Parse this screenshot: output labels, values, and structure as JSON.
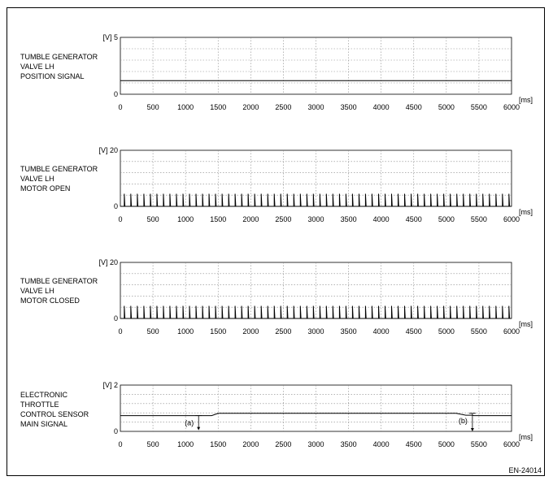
{
  "figure_id": "EN-24014",
  "chart_data": [
    {
      "type": "line",
      "signal_label": "TUMBLE GENERATOR\nVALVE LH\nPOSITION SIGNAL",
      "y_unit": "[V]",
      "x_unit": "[ms]",
      "ylim": [
        0,
        5
      ],
      "y_ticks": [
        "0",
        "5"
      ],
      "xlim": [
        0,
        6000
      ],
      "x_ticks": [
        "0",
        "500",
        "1000",
        "1500",
        "2000",
        "2500",
        "3000",
        "3500",
        "4000",
        "4500",
        "5000",
        "5500",
        "6000"
      ],
      "grid": true,
      "series": [
        {
          "x": [
            0,
            6000
          ],
          "y": [
            1.2,
            1.2
          ]
        }
      ]
    },
    {
      "type": "line",
      "signal_label": "TUMBLE GENERATOR\nVALVE LH\nMOTOR OPEN",
      "y_unit": "[V]",
      "x_unit": "[ms]",
      "ylim": [
        0,
        20
      ],
      "y_ticks": [
        "0",
        "20"
      ],
      "xlim": [
        0,
        6000
      ],
      "x_ticks": [
        "0",
        "500",
        "1000",
        "1500",
        "2000",
        "2500",
        "3000",
        "3500",
        "4000",
        "4500",
        "5000",
        "5500",
        "6000"
      ],
      "grid": true,
      "series": [
        {
          "pulse_train": {
            "period_ms": 100,
            "start_ms": 60,
            "pulse_width_ms": 10,
            "high_v": 4.5,
            "low_v": 0
          }
        }
      ]
    },
    {
      "type": "line",
      "signal_label": "TUMBLE GENERATOR\nVALVE LH\nMOTOR CLOSED",
      "y_unit": "[V]",
      "x_unit": "[ms]",
      "ylim": [
        0,
        20
      ],
      "y_ticks": [
        "0",
        "20"
      ],
      "xlim": [
        0,
        6000
      ],
      "x_ticks": [
        "0",
        "500",
        "1000",
        "1500",
        "2000",
        "2500",
        "3000",
        "3500",
        "4000",
        "4500",
        "5000",
        "5500",
        "6000"
      ],
      "grid": true,
      "series": [
        {
          "pulse_train": {
            "period_ms": 100,
            "start_ms": 60,
            "pulse_width_ms": 10,
            "high_v": 4.5,
            "low_v": 0
          }
        }
      ]
    },
    {
      "type": "line",
      "signal_label": "ELECTRONIC\nTHROTTLE\nCONTROL SENSOR\nMAIN SIGNAL",
      "y_unit": "[V]",
      "x_unit": "[ms]",
      "ylim": [
        0,
        2
      ],
      "y_ticks": [
        "0",
        "2"
      ],
      "xlim": [
        0,
        6000
      ],
      "x_ticks": [
        "0",
        "500",
        "1000",
        "1500",
        "2000",
        "2500",
        "3000",
        "3500",
        "4000",
        "4500",
        "5000",
        "5500",
        "6000"
      ],
      "grid": true,
      "series": [
        {
          "x": [
            0,
            1200,
            1400,
            1500,
            5150,
            5300,
            5400,
            5420,
            6000
          ],
          "y": [
            0.68,
            0.68,
            0.68,
            0.78,
            0.78,
            0.7,
            0.7,
            0.68,
            0.68
          ]
        }
      ],
      "annotations": [
        {
          "text": "(a)",
          "x": 1200,
          "y_from": 0.68,
          "y_to": 0.05
        },
        {
          "text": "(b)",
          "x": 5400,
          "y_from": 0.78,
          "y_to": 0.0
        }
      ]
    }
  ]
}
